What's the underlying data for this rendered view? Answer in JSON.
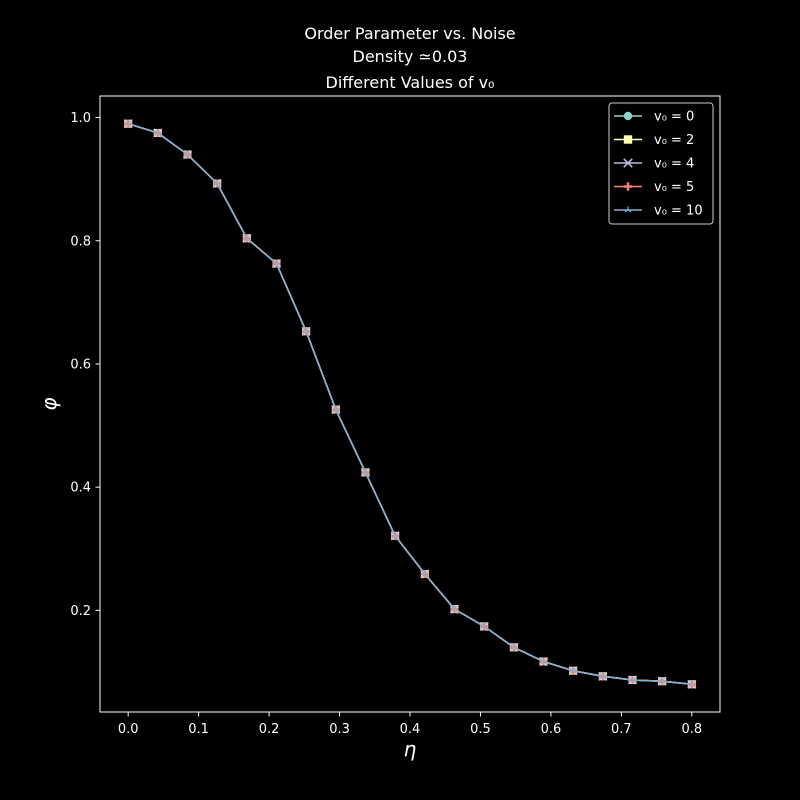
{
  "chart_data": {
    "type": "line",
    "title_lines": [
      "Order Parameter vs. Noise",
      "Density ≃0.03",
      "Different Values of v₀"
    ],
    "xlabel": "η",
    "ylabel": "φ",
    "xlim": [
      -0.04,
      0.84
    ],
    "ylim": [
      0.035,
      1.035
    ],
    "x_ticks": [
      0.0,
      0.1,
      0.2,
      0.3,
      0.4,
      0.5,
      0.6,
      0.7,
      0.8
    ],
    "x_tick_labels": [
      "0.0",
      "0.1",
      "0.2",
      "0.3",
      "0.4",
      "0.5",
      "0.6",
      "0.7",
      "0.8"
    ],
    "y_ticks": [
      0.2,
      0.4,
      0.6,
      0.8,
      1.0
    ],
    "y_tick_labels": [
      "0.2",
      "0.4",
      "0.6",
      "0.8",
      "1.0"
    ],
    "grid": false,
    "legend_position": "top-right",
    "x": [
      0.0,
      0.0421,
      0.0842,
      0.1263,
      0.1684,
      0.2105,
      0.2526,
      0.2947,
      0.3368,
      0.3789,
      0.4211,
      0.4632,
      0.5053,
      0.5474,
      0.5895,
      0.6316,
      0.6737,
      0.7158,
      0.7579,
      0.8
    ],
    "series": [
      {
        "name": "v₀ = 0",
        "color": "#8dd3c7",
        "marker": "circle",
        "values": [
          0.99,
          0.975,
          0.94,
          0.893,
          0.804,
          0.763,
          0.653,
          0.526,
          0.424,
          0.321,
          0.259,
          0.202,
          0.174,
          0.14,
          0.117,
          0.102,
          0.093,
          0.087,
          0.085,
          0.08
        ]
      },
      {
        "name": "v₀ = 2",
        "color": "#feffb3",
        "marker": "square",
        "values": [
          0.99,
          0.975,
          0.94,
          0.893,
          0.804,
          0.763,
          0.653,
          0.526,
          0.424,
          0.321,
          0.259,
          0.202,
          0.174,
          0.14,
          0.117,
          0.102,
          0.093,
          0.087,
          0.085,
          0.08
        ]
      },
      {
        "name": "v₀ = 4",
        "color": "#bfbbd9",
        "marker": "x",
        "values": [
          0.99,
          0.975,
          0.94,
          0.893,
          0.804,
          0.763,
          0.653,
          0.526,
          0.424,
          0.321,
          0.259,
          0.202,
          0.174,
          0.14,
          0.117,
          0.102,
          0.093,
          0.087,
          0.085,
          0.08
        ]
      },
      {
        "name": "v₀ = 5",
        "color": "#fa8174",
        "marker": "plus",
        "values": [
          0.99,
          0.975,
          0.94,
          0.893,
          0.804,
          0.763,
          0.653,
          0.526,
          0.424,
          0.321,
          0.259,
          0.202,
          0.174,
          0.14,
          0.117,
          0.102,
          0.093,
          0.087,
          0.085,
          0.08
        ]
      },
      {
        "name": "v₀ = 10",
        "color": "#81b1d2",
        "marker": "tri",
        "values": [
          0.99,
          0.975,
          0.94,
          0.893,
          0.804,
          0.763,
          0.653,
          0.526,
          0.424,
          0.321,
          0.259,
          0.202,
          0.174,
          0.14,
          0.117,
          0.102,
          0.093,
          0.087,
          0.085,
          0.08
        ]
      }
    ]
  }
}
